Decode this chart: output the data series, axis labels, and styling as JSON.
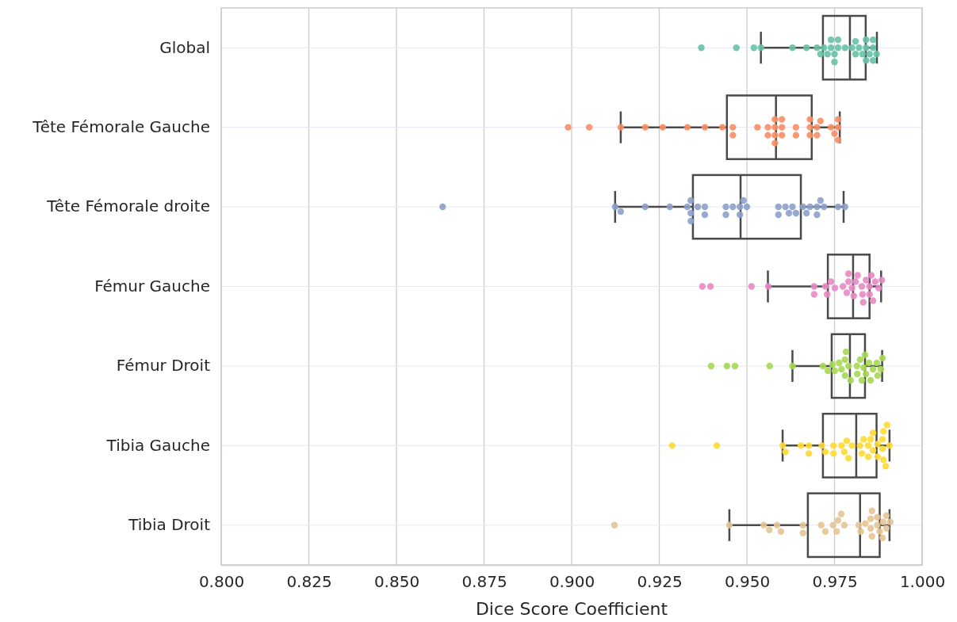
{
  "chart_data": {
    "type": "box",
    "orientation": "horizontal",
    "xlabel": "Dice Score Coefficient",
    "categories": [
      "Global",
      "Tête Fémorale Gauche",
      "Tête Fémorale droite",
      "Fémur Gauche",
      "Fémur Droit",
      "Tibia Gauche",
      "Tibia Droit"
    ],
    "xlim": [
      0.8,
      1.0
    ],
    "xticks": [
      {
        "value": 0.8,
        "label": "0.800"
      },
      {
        "value": 0.825,
        "label": "0.825"
      },
      {
        "value": 0.85,
        "label": "0.850"
      },
      {
        "value": 0.875,
        "label": "0.875"
      },
      {
        "value": 0.9,
        "label": "0.900"
      },
      {
        "value": 0.925,
        "label": "0.925"
      },
      {
        "value": 0.95,
        "label": "0.950"
      },
      {
        "value": 0.975,
        "label": "0.975"
      },
      {
        "value": 1.0,
        "label": "1.000"
      }
    ],
    "grid": true,
    "boxes": [
      {
        "low": 0.954,
        "q1": 0.9717,
        "median": 0.9794,
        "q3": 0.9839,
        "high": 0.9871
      },
      {
        "low": 0.914,
        "q1": 0.9443,
        "median": 0.9583,
        "q3": 0.9685,
        "high": 0.9765
      },
      {
        "low": 0.9124,
        "q1": 0.9346,
        "median": 0.9482,
        "q3": 0.9654,
        "high": 0.9776
      },
      {
        "low": 0.956,
        "q1": 0.9731,
        "median": 0.9803,
        "q3": 0.985,
        "high": 0.9883
      },
      {
        "low": 0.963,
        "q1": 0.9742,
        "median": 0.9794,
        "q3": 0.9837,
        "high": 0.9886
      },
      {
        "low": 0.9602,
        "q1": 0.9717,
        "median": 0.9812,
        "q3": 0.987,
        "high": 0.9907
      },
      {
        "low": 0.945,
        "q1": 0.9674,
        "median": 0.9823,
        "q3": 0.9879,
        "high": 0.9907
      }
    ],
    "series": [
      {
        "type": "scatter",
        "color": "#66c2a5",
        "x": [
          "Global",
          "Global",
          "Global",
          "Global",
          "Global",
          "Global",
          "Global",
          "Global",
          "Global",
          "Global",
          "Global",
          "Global",
          "Global",
          "Global",
          "Global",
          "Global",
          "Global",
          "Global",
          "Global",
          "Global",
          "Global",
          "Global",
          "Global",
          "Global",
          "Global",
          "Global",
          "Global",
          "Global",
          "Global",
          "Global"
        ],
        "values": [
          0.937,
          0.947,
          0.952,
          0.954,
          0.963,
          0.967,
          0.97,
          0.971,
          0.972,
          0.973,
          0.974,
          0.974,
          0.975,
          0.975,
          0.976,
          0.976,
          0.978,
          0.98,
          0.981,
          0.981,
          0.982,
          0.983,
          0.984,
          0.984,
          0.984,
          0.985,
          0.986,
          0.986,
          0.986,
          0.987
        ]
      },
      {
        "type": "scatter",
        "color": "#fc8d62",
        "x": [
          "Tête Fémorale Gauche",
          "Tête Fémorale Gauche",
          "Tête Fémorale Gauche",
          "Tête Fémorale Gauche",
          "Tête Fémorale Gauche",
          "Tête Fémorale Gauche",
          "Tête Fémorale Gauche",
          "Tête Fémorale Gauche",
          "Tête Fémorale Gauche",
          "Tête Fémorale Gauche",
          "Tête Fémorale Gauche",
          "Tête Fémorale Gauche",
          "Tête Fémorale Gauche",
          "Tête Fémorale Gauche",
          "Tête Fémorale Gauche",
          "Tête Fémorale Gauche",
          "Tête Fémorale Gauche",
          "Tête Fémorale Gauche",
          "Tête Fémorale Gauche",
          "Tête Fémorale Gauche",
          "Tête Fémorale Gauche",
          "Tête Fémorale Gauche",
          "Tête Fémorale Gauche",
          "Tête Fémorale Gauche",
          "Tête Fémorale Gauche",
          "Tête Fémorale Gauche",
          "Tête Fémorale Gauche",
          "Tête Fémorale Gauche",
          "Tête Fémorale Gauche",
          "Tête Fémorale Gauche",
          "Tête Fémorale Gauche",
          "Tête Fémorale Gauche",
          "Tête Fémorale Gauche"
        ],
        "values": [
          0.899,
          0.905,
          0.914,
          0.921,
          0.926,
          0.933,
          0.938,
          0.943,
          0.946,
          0.946,
          0.953,
          0.956,
          0.956,
          0.958,
          0.958,
          0.958,
          0.958,
          0.96,
          0.96,
          0.96,
          0.964,
          0.964,
          0.968,
          0.968,
          0.968,
          0.97,
          0.97,
          0.971,
          0.974,
          0.975,
          0.976,
          0.976,
          0.976
        ]
      },
      {
        "type": "scatter",
        "color": "#8da0cb",
        "x": [
          "Tête Fémorale droite",
          "Tête Fémorale droite",
          "Tête Fémorale droite",
          "Tête Fémorale droite",
          "Tête Fémorale droite",
          "Tête Fémorale droite",
          "Tête Fémorale droite",
          "Tête Fémorale droite",
          "Tête Fémorale droite",
          "Tête Fémorale droite",
          "Tête Fémorale droite",
          "Tête Fémorale droite",
          "Tête Fémorale droite",
          "Tête Fémorale droite",
          "Tête Fémorale droite",
          "Tête Fémorale droite",
          "Tête Fémorale droite",
          "Tête Fémorale droite",
          "Tête Fémorale droite",
          "Tête Fémorale droite",
          "Tête Fémorale droite",
          "Tête Fémorale droite",
          "Tête Fémorale droite",
          "Tête Fémorale droite",
          "Tête Fémorale droite",
          "Tête Fémorale droite",
          "Tête Fémorale droite",
          "Tête Fémorale droite",
          "Tête Fémorale droite",
          "Tête Fémorale droite",
          "Tête Fémorale droite",
          "Tête Fémorale droite",
          "Tête Fémorale droite",
          "Tête Fémorale droite"
        ],
        "values": [
          0.8632,
          0.9124,
          0.914,
          0.921,
          0.928,
          0.933,
          0.934,
          0.934,
          0.934,
          0.936,
          0.938,
          0.938,
          0.944,
          0.944,
          0.946,
          0.948,
          0.948,
          0.949,
          0.95,
          0.959,
          0.959,
          0.961,
          0.962,
          0.963,
          0.964,
          0.966,
          0.967,
          0.968,
          0.97,
          0.97,
          0.971,
          0.972,
          0.976,
          0.978
        ]
      },
      {
        "type": "scatter",
        "color": "#e78ac3",
        "x": [
          "Fémur Gauche",
          "Fémur Gauche",
          "Fémur Gauche",
          "Fémur Gauche",
          "Fémur Gauche",
          "Fémur Gauche",
          "Fémur Gauche",
          "Fémur Gauche",
          "Fémur Gauche",
          "Fémur Gauche",
          "Fémur Gauche",
          "Fémur Gauche",
          "Fémur Gauche",
          "Fémur Gauche",
          "Fémur Gauche",
          "Fémur Gauche",
          "Fémur Gauche",
          "Fémur Gauche",
          "Fémur Gauche",
          "Fémur Gauche",
          "Fémur Gauche",
          "Fémur Gauche",
          "Fémur Gauche",
          "Fémur Gauche",
          "Fémur Gauche",
          "Fémur Gauche",
          "Fémur Gauche",
          "Fémur Gauche",
          "Fémur Gauche"
        ],
        "values": [
          0.9373,
          0.9396,
          0.9513,
          0.9561,
          0.9692,
          0.9692,
          0.9724,
          0.9729,
          0.974,
          0.9751,
          0.9774,
          0.9785,
          0.979,
          0.979,
          0.98,
          0.9805,
          0.981,
          0.9816,
          0.9828,
          0.983,
          0.9832,
          0.984,
          0.985,
          0.985,
          0.9855,
          0.986,
          0.9866,
          0.9876,
          0.9885
        ]
      },
      {
        "type": "scatter",
        "color": "#a6d854",
        "x": [
          "Fémur Droit",
          "Fémur Droit",
          "Fémur Droit",
          "Fémur Droit",
          "Fémur Droit",
          "Fémur Droit",
          "Fémur Droit",
          "Fémur Droit",
          "Fémur Droit",
          "Fémur Droit",
          "Fémur Droit",
          "Fémur Droit",
          "Fémur Droit",
          "Fémur Droit",
          "Fémur Droit",
          "Fémur Droit",
          "Fémur Droit",
          "Fémur Droit",
          "Fémur Droit",
          "Fémur Droit",
          "Fémur Droit",
          "Fémur Droit",
          "Fémur Droit",
          "Fémur Droit",
          "Fémur Droit",
          "Fémur Droit",
          "Fémur Droit",
          "Fémur Droit",
          "Fémur Droit",
          "Fémur Droit"
        ],
        "values": [
          0.9398,
          0.9443,
          0.9466,
          0.9565,
          0.963,
          0.9717,
          0.9731,
          0.9744,
          0.9751,
          0.9763,
          0.977,
          0.978,
          0.978,
          0.9783,
          0.979,
          0.9796,
          0.9814,
          0.9815,
          0.9823,
          0.9828,
          0.9833,
          0.9837,
          0.984,
          0.9848,
          0.9853,
          0.986,
          0.9871,
          0.9873,
          0.9882,
          0.9887
        ]
      },
      {
        "type": "scatter",
        "color": "#ffd92f",
        "x": [
          "Tibia Gauche",
          "Tibia Gauche",
          "Tibia Gauche",
          "Tibia Gauche",
          "Tibia Gauche",
          "Tibia Gauche",
          "Tibia Gauche",
          "Tibia Gauche",
          "Tibia Gauche",
          "Tibia Gauche",
          "Tibia Gauche",
          "Tibia Gauche",
          "Tibia Gauche",
          "Tibia Gauche",
          "Tibia Gauche",
          "Tibia Gauche",
          "Tibia Gauche",
          "Tibia Gauche",
          "Tibia Gauche",
          "Tibia Gauche",
          "Tibia Gauche",
          "Tibia Gauche",
          "Tibia Gauche",
          "Tibia Gauche",
          "Tibia Gauche",
          "Tibia Gauche",
          "Tibia Gauche",
          "Tibia Gauche",
          "Tibia Gauche",
          "Tibia Gauche",
          "Tibia Gauche",
          "Tibia Gauche",
          "Tibia Gauche"
        ],
        "values": [
          0.9287,
          0.9414,
          0.9602,
          0.961,
          0.9654,
          0.9677,
          0.9677,
          0.9714,
          0.9724,
          0.9747,
          0.9747,
          0.977,
          0.9778,
          0.9785,
          0.979,
          0.98,
          0.9823,
          0.9828,
          0.9833,
          0.9846,
          0.9846,
          0.9853,
          0.986,
          0.986,
          0.9873,
          0.9873,
          0.9887,
          0.9887,
          0.989,
          0.989,
          0.9896,
          0.99,
          0.9907
        ]
      },
      {
        "type": "scatter",
        "color": "#e5c494",
        "x": [
          "Tibia Droit",
          "Tibia Droit",
          "Tibia Droit",
          "Tibia Droit",
          "Tibia Droit",
          "Tibia Droit",
          "Tibia Droit",
          "Tibia Droit",
          "Tibia Droit",
          "Tibia Droit",
          "Tibia Droit",
          "Tibia Droit",
          "Tibia Droit",
          "Tibia Droit",
          "Tibia Droit",
          "Tibia Droit",
          "Tibia Droit",
          "Tibia Droit",
          "Tibia Droit",
          "Tibia Droit",
          "Tibia Droit",
          "Tibia Droit",
          "Tibia Droit",
          "Tibia Droit",
          "Tibia Droit",
          "Tibia Droit",
          "Tibia Droit",
          "Tibia Droit",
          "Tibia Droit",
          "Tibia Droit"
        ],
        "values": [
          0.9122,
          0.945,
          0.9548,
          0.9564,
          0.9586,
          0.9597,
          0.966,
          0.966,
          0.9712,
          0.9724,
          0.9746,
          0.9756,
          0.976,
          0.9769,
          0.9778,
          0.9819,
          0.9825,
          0.9838,
          0.9853,
          0.9853,
          0.9857,
          0.9857,
          0.9872,
          0.9872,
          0.9879,
          0.9887,
          0.9889,
          0.9898,
          0.9898,
          0.9909
        ]
      }
    ]
  }
}
